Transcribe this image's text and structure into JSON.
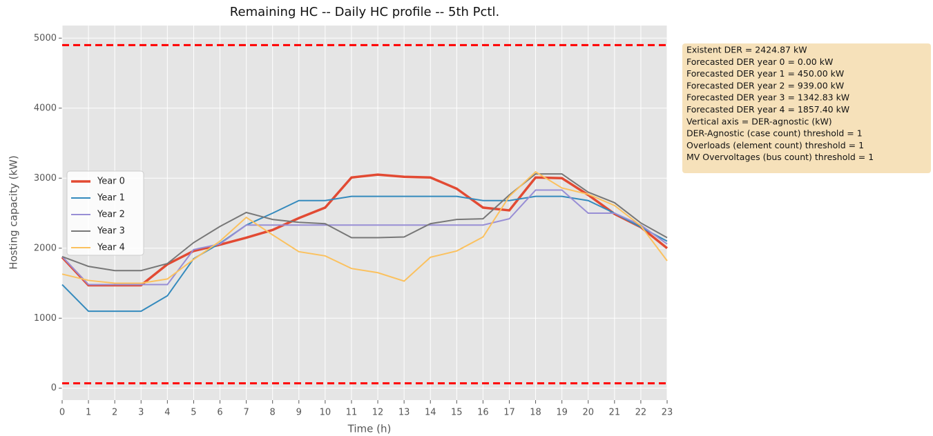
{
  "chart_data": {
    "type": "line",
    "title": "Remaining HC -- Daily HC profile -- 5th Pctl.",
    "x_label": "Time (h)",
    "y_label": "Hosting capacity (kW)",
    "x": [
      0,
      1,
      2,
      3,
      4,
      5,
      6,
      7,
      8,
      9,
      10,
      11,
      12,
      13,
      14,
      15,
      16,
      17,
      18,
      19,
      20,
      21,
      22,
      23
    ],
    "xlim": [
      0,
      23
    ],
    "xticks": [
      0,
      1,
      2,
      3,
      4,
      5,
      6,
      7,
      8,
      9,
      10,
      11,
      12,
      13,
      14,
      15,
      16,
      17,
      18,
      19,
      20,
      21,
      22,
      23
    ],
    "ylim": [
      -170,
      5180
    ],
    "yticks": [
      0,
      1000,
      2000,
      3000,
      4000,
      5000
    ],
    "grid": true,
    "legend": "center left",
    "reference_lines": [
      4900,
      70
    ],
    "reference_color": "#ff0000",
    "series": [
      {
        "name": "Year 0",
        "color": "#e24a33",
        "values": [
          1870,
          1470,
          1470,
          1470,
          1770,
          1960,
          2050,
          2150,
          2260,
          2430,
          2580,
          3010,
          3050,
          3020,
          3010,
          2850,
          2580,
          2540,
          3010,
          3000,
          2760,
          2490,
          2300,
          2000
        ]
      },
      {
        "name": "Year 1",
        "color": "#348abd",
        "values": [
          1480,
          1100,
          1100,
          1100,
          1320,
          1850,
          2070,
          2330,
          2500,
          2680,
          2680,
          2740,
          2740,
          2740,
          2740,
          2740,
          2680,
          2680,
          2740,
          2740,
          2680,
          2500,
          2300,
          2100
        ]
      },
      {
        "name": "Year 2",
        "color": "#988ed5",
        "values": [
          1880,
          1480,
          1480,
          1480,
          1480,
          1980,
          2060,
          2330,
          2330,
          2330,
          2330,
          2330,
          2330,
          2330,
          2330,
          2330,
          2330,
          2420,
          2830,
          2830,
          2500,
          2500,
          2330,
          2060
        ]
      },
      {
        "name": "Year 3",
        "color": "#777777",
        "values": [
          1880,
          1740,
          1680,
          1680,
          1780,
          2080,
          2310,
          2510,
          2410,
          2370,
          2350,
          2150,
          2150,
          2160,
          2350,
          2410,
          2420,
          2760,
          3060,
          3060,
          2800,
          2650,
          2360,
          2150
        ]
      },
      {
        "name": "Year 4",
        "color": "#fbc15e",
        "values": [
          1630,
          1540,
          1500,
          1500,
          1560,
          1840,
          2100,
          2440,
          2190,
          1950,
          1890,
          1710,
          1650,
          1530,
          1870,
          1960,
          2160,
          2740,
          3090,
          2860,
          2770,
          2610,
          2320,
          1820
        ]
      }
    ],
    "annotation": [
      "Existent DER = 2424.87 kW",
      "Forecasted DER year 0 = 0.00 kW",
      "Forecasted DER year 1 = 450.00 kW",
      "Forecasted DER year 2 = 939.00 kW",
      "Forecasted DER year 3 = 1342.83 kW",
      "Forecasted DER year 4 = 1857.40 kW",
      "Vertical axis = DER-agnostic (kW)",
      "DER-Agnostic (case count) threshold = 1",
      "Overloads (element count) threshold = 1",
      "MV Overvoltages (bus count) threshold = 1"
    ]
  }
}
